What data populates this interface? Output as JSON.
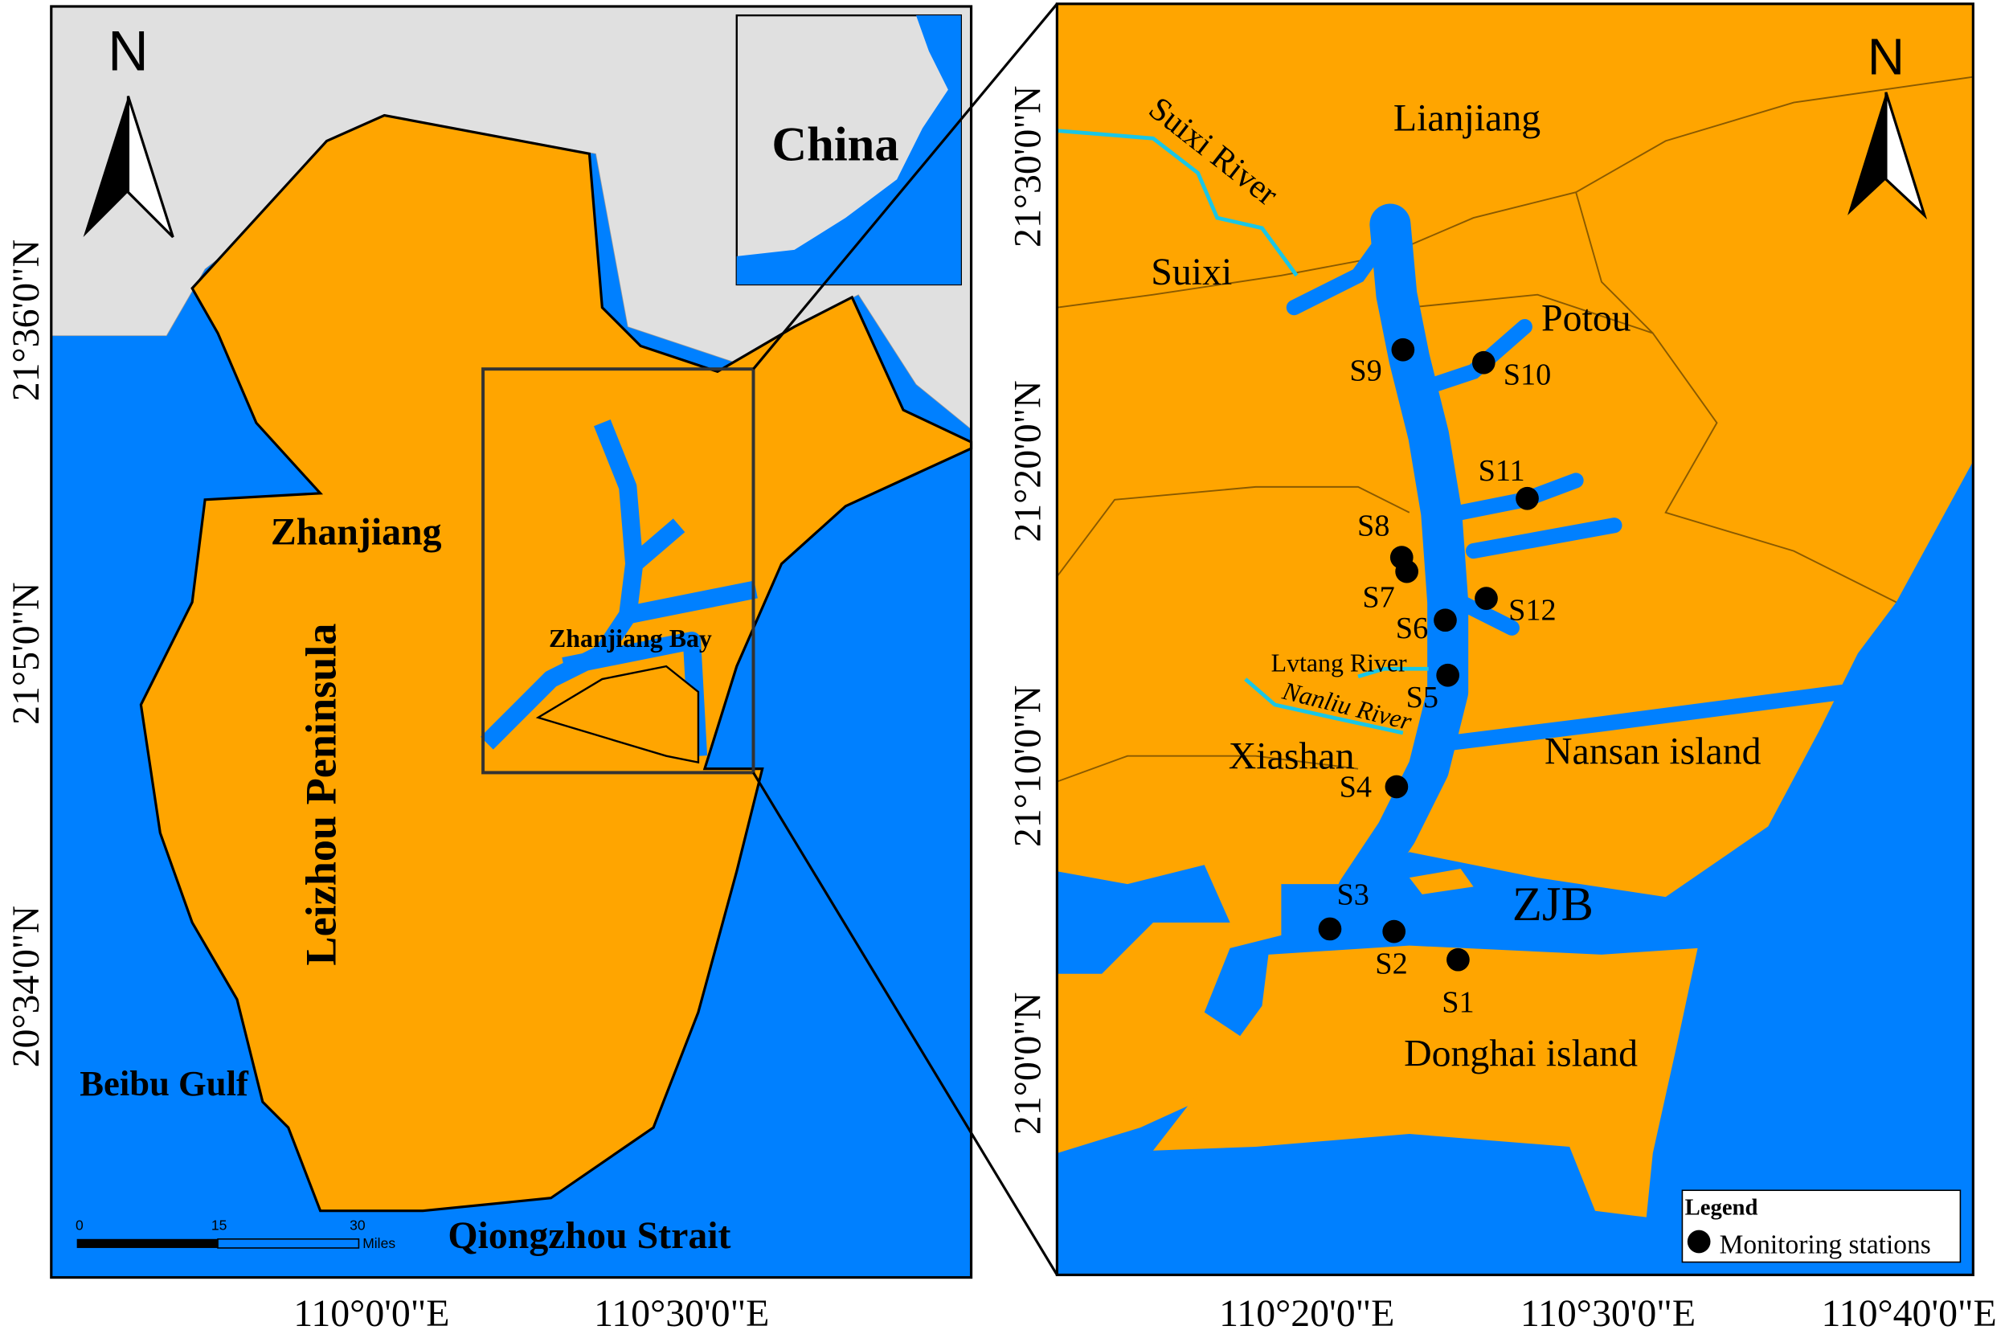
{
  "colors": {
    "land": "#FFA500",
    "sea": "#0080FF",
    "other_land": "#E0E0E0",
    "river": "#19C6E6",
    "station": "#000000"
  },
  "left_map": {
    "north_label": "N",
    "place_labels": [
      "Zhanjiang",
      "Leizhou Peninsula",
      "Zhanjiang Bay",
      "Beibu Gulf",
      "Qiongzhou Strait"
    ],
    "inset_label": "China",
    "scale_bar": {
      "ticks": [
        "0",
        "15",
        "30"
      ],
      "unit": "Miles"
    },
    "lat_labels": [
      "21°36'0\"N",
      "21°5'0\"N",
      "20°34'0\"N"
    ],
    "lon_labels": [
      "110°0'0\"E",
      "110°30'0\"E"
    ]
  },
  "right_map": {
    "north_label": "N",
    "place_labels": [
      "Lianjiang",
      "Suixi",
      "Potou",
      "Xiashan",
      "Nansan island",
      "ZJB",
      "Donghai island"
    ],
    "rivers": [
      "Suixi River",
      "Lvtang River",
      "Nanliu River"
    ],
    "stations": [
      "S1",
      "S2",
      "S3",
      "S4",
      "S5",
      "S6",
      "S7",
      "S8",
      "S9",
      "S10",
      "S11",
      "S12"
    ],
    "lat_labels": [
      "21°30'0\"N",
      "21°20'0\"N",
      "21°10'0\"N",
      "21°0'0\"N"
    ],
    "lon_labels": [
      "110°20'0\"E",
      "110°30'0\"E",
      "110°40'0\"E"
    ],
    "legend": {
      "title": "Legend",
      "item": "Monitoring stations"
    }
  }
}
